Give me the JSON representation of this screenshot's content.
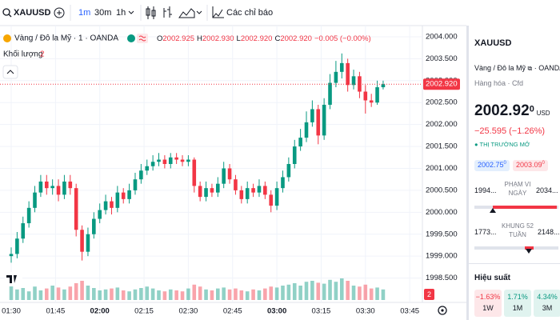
{
  "toolbar": {
    "symbol": "XAUUSD",
    "intervals": [
      "1m",
      "30m",
      "1h"
    ],
    "indicators": "Các chỉ báo"
  },
  "chart_data": {
    "type": "candlestick",
    "title": "Vàng / Đô la Mỹ · 1 · OANDA",
    "ohlc": [
      {
        "label": "O",
        "value": "2002.925"
      },
      {
        "label": "H",
        "value": "2002.930"
      },
      {
        "label": "L",
        "value": "2002.920"
      },
      {
        "label": "C",
        "value": "2002.920"
      }
    ],
    "change": "−0.005 (−0.00%)",
    "volume_label": "Khối lượng",
    "volume_param": "2",
    "volume_badge": "2",
    "up_color": "#089981",
    "down_color": "#f23645",
    "grid": true,
    "x": [
      "01:30",
      "01:32",
      "01:34",
      "01:36",
      "01:38",
      "01:40",
      "01:42",
      "01:44",
      "01:46",
      "01:48",
      "01:50",
      "01:52",
      "01:54",
      "01:56",
      "01:58",
      "02:00",
      "02:02",
      "02:04",
      "02:06",
      "02:08",
      "02:10",
      "02:12",
      "02:14",
      "02:16",
      "02:18",
      "02:20",
      "02:22",
      "02:24",
      "02:26",
      "02:28",
      "02:30",
      "02:32",
      "02:34",
      "02:36",
      "02:38",
      "02:40",
      "02:42",
      "02:44",
      "02:46",
      "02:48",
      "02:50",
      "02:52",
      "02:54",
      "02:56",
      "02:58",
      "03:00",
      "03:02",
      "03:04",
      "03:06",
      "03:08",
      "03:10",
      "03:12",
      "03:14",
      "03:16",
      "03:18",
      "03:20",
      "03:22",
      "03:24",
      "03:26",
      "03:28",
      "03:30",
      "03:32",
      "03:34",
      "03:36"
    ],
    "open": [
      1999.0,
      1999.05,
      1999.4,
      1999.75,
      2000.1,
      2000.45,
      2000.7,
      2000.55,
      2000.6,
      2000.4,
      2000.7,
      2000.55,
      1999.6,
      1999.1,
      1999.5,
      1999.85,
      2000.05,
      2000.25,
      2000.1,
      2000.45,
      2000.3,
      2000.5,
      2000.75,
      2000.95,
      2001.05,
      2001.15,
      2001.2,
      2001.1,
      2001.25,
      2001.2,
      2001.15,
      2001.2,
      2000.6,
      2000.35,
      2000.55,
      2000.45,
      2000.65,
      2001.0,
      2000.75,
      2000.5,
      2000.3,
      2000.55,
      2000.45,
      2000.6,
      2000.4,
      2000.15,
      2000.55,
      2000.8,
      2001.1,
      2001.5,
      2001.7,
      2002.05,
      2002.35,
      2001.75,
      2002.45,
      2002.95,
      2003.2,
      2003.4,
      2002.9,
      2003.1,
      2002.75,
      2002.55,
      2002.5,
      2002.85
    ],
    "high": [
      1999.2,
      1999.55,
      1999.9,
      2000.25,
      2000.6,
      2000.85,
      2000.85,
      2000.75,
      2000.75,
      2000.85,
      2000.85,
      2000.65,
      1999.7,
      1999.65,
      2000.0,
      2000.2,
      2000.4,
      2000.35,
      2000.6,
      2000.55,
      2000.65,
      2000.9,
      2001.1,
      2001.2,
      2001.3,
      2001.35,
      2001.3,
      2001.35,
      2001.35,
      2001.3,
      2001.3,
      2001.25,
      2000.7,
      2000.7,
      2000.65,
      2000.8,
      2001.15,
      2001.1,
      2000.85,
      2000.6,
      2000.7,
      2000.65,
      2000.75,
      2000.7,
      2000.5,
      2000.7,
      2000.95,
      2001.25,
      2001.65,
      2001.9,
      2002.3,
      2002.55,
      2002.45,
      2002.6,
      2003.15,
      2003.45,
      2003.62,
      2003.5,
      2003.25,
      2003.2,
      2002.9,
      2002.7,
      2003.0,
      2003.0
    ],
    "low": [
      1998.85,
      1998.95,
      1999.3,
      1999.65,
      2000.0,
      2000.35,
      2000.4,
      2000.4,
      2000.25,
      2000.3,
      2000.4,
      1999.45,
      1998.9,
      1999.0,
      1999.4,
      1999.75,
      1999.95,
      1999.95,
      2000.0,
      2000.2,
      2000.2,
      2000.4,
      2000.65,
      2000.85,
      2000.95,
      2001.05,
      2001.0,
      2001.0,
      2001.1,
      2001.05,
      2001.05,
      2000.45,
      2000.25,
      2000.25,
      2000.35,
      2000.35,
      2000.55,
      2000.65,
      2000.4,
      2000.2,
      2000.2,
      2000.35,
      2000.35,
      2000.3,
      2000.0,
      2000.05,
      2000.45,
      2000.7,
      2001.0,
      2001.4,
      2001.6,
      2001.95,
      2001.55,
      2001.65,
      2002.35,
      2002.85,
      2003.05,
      2002.75,
      2002.8,
      2002.6,
      2002.25,
      2002.4,
      2002.45,
      2002.8
    ],
    "close": [
      1999.05,
      1999.4,
      1999.75,
      2000.1,
      2000.45,
      2000.7,
      2000.55,
      2000.6,
      2000.4,
      2000.7,
      2000.55,
      1999.6,
      1999.1,
      1999.5,
      1999.85,
      2000.05,
      2000.25,
      2000.1,
      2000.45,
      2000.3,
      2000.5,
      2000.75,
      2000.95,
      2001.05,
      2001.15,
      2001.2,
      2001.1,
      2001.25,
      2001.2,
      2001.15,
      2001.2,
      2000.6,
      2000.35,
      2000.55,
      2000.45,
      2000.65,
      2001.0,
      2000.75,
      2000.5,
      2000.3,
      2000.55,
      2000.45,
      2000.6,
      2000.4,
      2000.15,
      2000.55,
      2000.8,
      2001.1,
      2001.5,
      2001.7,
      2002.05,
      2002.35,
      2001.75,
      2002.45,
      2002.95,
      2003.2,
      2003.4,
      2002.9,
      2003.1,
      2002.75,
      2002.55,
      2002.5,
      2002.85,
      2002.92
    ],
    "volume": [
      30,
      22,
      25,
      18,
      28,
      20,
      24,
      30,
      26,
      22,
      28,
      35,
      40,
      30,
      25,
      20,
      22,
      24,
      26,
      20,
      18,
      22,
      25,
      28,
      24,
      20,
      18,
      22,
      20,
      18,
      24,
      32,
      28,
      22,
      20,
      24,
      26,
      22,
      24,
      20,
      18,
      22,
      20,
      24,
      28,
      26,
      30,
      32,
      35,
      30,
      38,
      40,
      36,
      34,
      42,
      38,
      45,
      40,
      30,
      28,
      32,
      24,
      26,
      22
    ],
    "vlim": [
      0,
      100
    ],
    "ylim": [
      1998.0,
      2004.2
    ],
    "yticks": [
      {
        "value": 1998.5,
        "label": "1998.500"
      },
      {
        "value": 1999.0,
        "label": "1999.000"
      },
      {
        "value": 1999.5,
        "label": "1999.500"
      },
      {
        "value": 2000.0,
        "label": "2000.000"
      },
      {
        "value": 2000.5,
        "label": "2000.500"
      },
      {
        "value": 2001.0,
        "label": "2001.000"
      },
      {
        "value": 2001.5,
        "label": "2001.500"
      },
      {
        "value": 2002.0,
        "label": "2002.000"
      },
      {
        "value": 2002.5,
        "label": "2002.500"
      },
      {
        "value": 2003.0,
        "label": "2003.000"
      },
      {
        "value": 2003.5,
        "label": "2003.500"
      },
      {
        "value": 2004.0,
        "label": "2004.000"
      }
    ],
    "xticks": [
      "01:30",
      "01:45",
      "02:00",
      "02:15",
      "02:30",
      "02:45",
      "03:00",
      "03:15",
      "03:30",
      "03:45"
    ],
    "last_price": {
      "value": 2002.92,
      "label": "2002.920"
    }
  },
  "sidebar": {
    "symbol": "XAUUSD",
    "name": "Vàng / Đô la Mỹ",
    "exchange": "· OANDA",
    "category": "Hàng hóa · Cfd",
    "price": "2002.92",
    "price_sup": "0",
    "currency": "USD",
    "change": "−25.595 (−1.26%)",
    "market_status": "THỊ TRƯỜNG MỞ",
    "bid": "2002.75",
    "bid_sup": "0",
    "ask": "2003.09",
    "ask_sup": "0",
    "day_range": {
      "low": "1994...",
      "label": "PHẠM VI NGÀY",
      "high": "2034..."
    },
    "week52_range": {
      "low": "1773...",
      "label": "KHUNG 52 TUẦN",
      "high": "2148..."
    },
    "performance_title": "Hiệu suất",
    "performance": [
      {
        "value": "−1.63%",
        "period": "1W"
      },
      {
        "value": "1.71%",
        "period": "1M"
      },
      {
        "value": "4.34%",
        "period": "3M"
      }
    ]
  }
}
